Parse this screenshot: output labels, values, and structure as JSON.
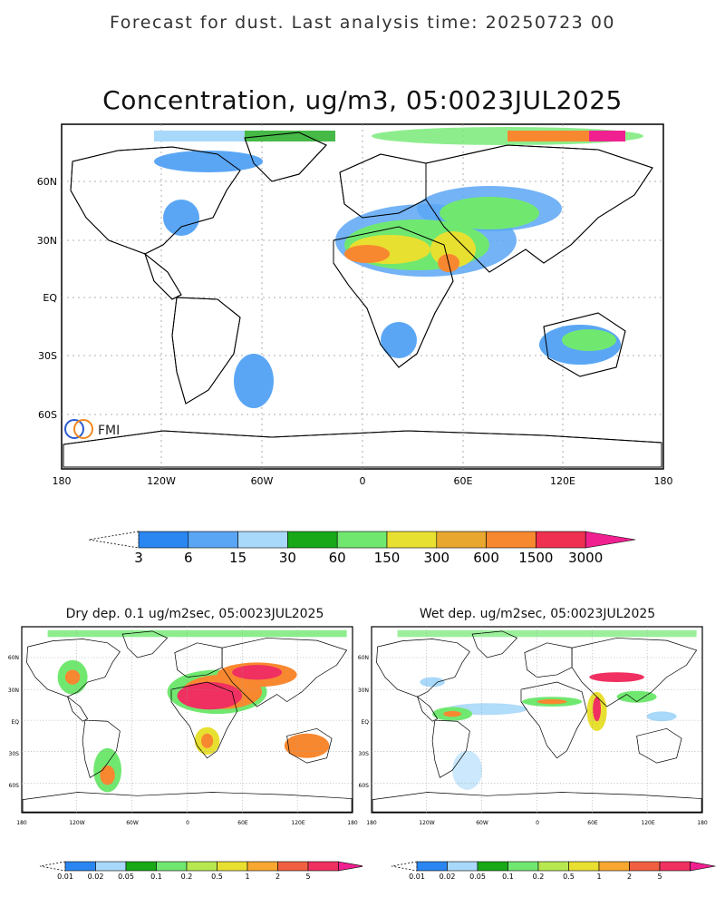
{
  "header": {
    "suptitle": "Forecast for dust. Last analysis time: 20250723 00",
    "title": "Concentration, ug/m3, 05:0023JUL2025"
  },
  "logo": {
    "text": "FMI"
  },
  "main_map": {
    "lon_ticks": [
      "180",
      "120W",
      "60W",
      "0",
      "60E",
      "120E",
      "180"
    ],
    "lat_ticks": [
      "60N",
      "30N",
      "EQ",
      "30S",
      "60S"
    ]
  },
  "main_colorbar": {
    "labels": [
      "3",
      "6",
      "15",
      "30",
      "60",
      "150",
      "300",
      "600",
      "1500",
      "3000"
    ],
    "colors": [
      "#2a86f0",
      "#5aa6f5",
      "#a8d8fa",
      "#18a818",
      "#70e870",
      "#e8e030",
      "#e8a830",
      "#f88830",
      "#f03050",
      "#f02090"
    ]
  },
  "dry_panel": {
    "title": "Dry dep. 0.1 ug/m2sec, 05:0023JUL2025",
    "lon_ticks": [
      "180",
      "120W",
      "60W",
      "0",
      "60E",
      "120E",
      "180"
    ],
    "lat_ticks": [
      "60N",
      "30N",
      "EQ",
      "30S",
      "60S"
    ]
  },
  "wet_panel": {
    "title": "Wet dep. ug/m2sec, 05:0023JUL2025",
    "lon_ticks": [
      "180",
      "120W",
      "60W",
      "0",
      "60E",
      "120E",
      "180"
    ],
    "lat_ticks": [
      "60N",
      "30N",
      "EQ",
      "30S",
      "60S"
    ]
  },
  "small_colorbar": {
    "labels": [
      "0.01",
      "0.02",
      "0.05",
      "0.1",
      "0.2",
      "0.5",
      "1",
      "2",
      "5"
    ],
    "colors": [
      "#2a86f0",
      "#a8d8fa",
      "#18a818",
      "#70e870",
      "#b8e850",
      "#e8e030",
      "#f8a830",
      "#f06040",
      "#f03060",
      "#f02090"
    ]
  }
}
